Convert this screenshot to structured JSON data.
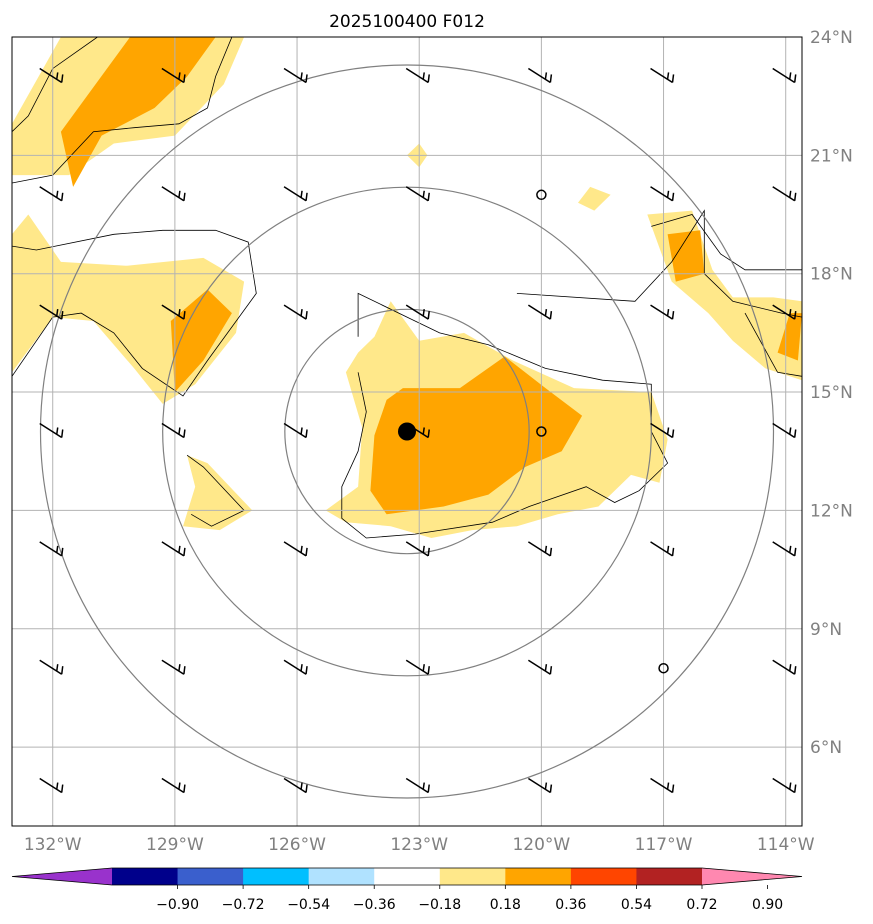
{
  "title": "2025100400 F012",
  "map": {
    "lon_min": -133,
    "lon_max": -113.6,
    "lat_min": 4,
    "lat_max": 24,
    "lon_ticks": [
      {
        "value": -132,
        "label": "132°W"
      },
      {
        "value": -129,
        "label": "129°W"
      },
      {
        "value": -126,
        "label": "126°W"
      },
      {
        "value": -123,
        "label": "123°W"
      },
      {
        "value": -120,
        "label": "120°W"
      },
      {
        "value": -117,
        "label": "117°W"
      },
      {
        "value": -114,
        "label": "114°W"
      }
    ],
    "lat_ticks": [
      {
        "value": 24,
        "label": "24°N"
      },
      {
        "value": 21,
        "label": "21°N"
      },
      {
        "value": 18,
        "label": "18°N"
      },
      {
        "value": 15,
        "label": "15°N"
      },
      {
        "value": 12,
        "label": "12°N"
      },
      {
        "value": 9,
        "label": "9°N"
      },
      {
        "value": 6,
        "label": "6°N"
      }
    ],
    "gridlines": true,
    "storm_center": {
      "lon": -123.3,
      "lat": 14.0
    },
    "range_rings_deg": [
      3,
      6,
      9
    ]
  },
  "colorbar": {
    "levels": [
      "−0.90",
      "−0.72",
      "−0.54",
      "−0.36",
      "−0.18",
      "0.18",
      "0.36",
      "0.54",
      "0.72",
      "0.90"
    ],
    "colors": [
      "#9932cc",
      "#00008b",
      "#3a5fcd",
      "#00bfff",
      "#b0e2ff",
      "#ffffff",
      "#ffe88a",
      "#ffa500",
      "#ff4500",
      "#b22222",
      "#ff88b0"
    ]
  },
  "chart_data": {
    "type": "heatmap",
    "title": "2025100400 F012",
    "fill_regions": [
      {
        "level": "0.18-0.36",
        "color": "#ffe88a",
        "points": [
          [
            -131.8,
            24
          ],
          [
            -127.3,
            24
          ],
          [
            -127.8,
            22.8
          ],
          [
            -129,
            21.5
          ],
          [
            -130.5,
            21.3
          ],
          [
            -131.6,
            20.5
          ],
          [
            -133,
            20.5
          ],
          [
            -133,
            21.8
          ]
        ]
      },
      {
        "level": "0.36-0.54",
        "color": "#ffa500",
        "points": [
          [
            -130.1,
            24
          ],
          [
            -128,
            24
          ],
          [
            -128.7,
            23
          ],
          [
            -129.5,
            22.2
          ],
          [
            -130.8,
            21.5
          ],
          [
            -131.5,
            20.2
          ],
          [
            -131.8,
            21.6
          ]
        ]
      },
      {
        "level": "0.18-0.36",
        "color": "#ffe88a",
        "points": [
          [
            -133,
            19
          ],
          [
            -132.6,
            19.5
          ],
          [
            -131.8,
            18.3
          ],
          [
            -130.2,
            18.2
          ],
          [
            -128.3,
            18.4
          ],
          [
            -127.3,
            17.8
          ],
          [
            -127.5,
            16.5
          ],
          [
            -128.5,
            15.2
          ],
          [
            -129.3,
            14.7
          ],
          [
            -130,
            15.6
          ],
          [
            -131,
            16.8
          ],
          [
            -132,
            16.9
          ],
          [
            -133,
            15.5
          ]
        ]
      },
      {
        "level": "0.36-0.54",
        "color": "#ffa500",
        "points": [
          [
            -129.1,
            16.8
          ],
          [
            -128.2,
            17.6
          ],
          [
            -127.6,
            17
          ],
          [
            -128.3,
            15.8
          ],
          [
            -129,
            15
          ]
        ]
      },
      {
        "level": "0.18-0.36",
        "color": "#ffe88a",
        "points": [
          [
            -124.1,
            16.4
          ],
          [
            -123.7,
            17.3
          ],
          [
            -123,
            16.3
          ],
          [
            -121.9,
            16.5
          ],
          [
            -120.7,
            15.8
          ],
          [
            -119.2,
            15.1
          ],
          [
            -117.3,
            15
          ],
          [
            -116.9,
            13.8
          ],
          [
            -117.1,
            12.7
          ],
          [
            -117.8,
            12.9
          ],
          [
            -118.6,
            12.1
          ],
          [
            -119.6,
            11.9
          ],
          [
            -120.6,
            11.6
          ],
          [
            -121.7,
            11.5
          ],
          [
            -122.7,
            11.3
          ],
          [
            -123.7,
            11.6
          ],
          [
            -124.8,
            11.7
          ],
          [
            -125.3,
            12
          ],
          [
            -124.5,
            12.6
          ],
          [
            -124.4,
            14.1
          ],
          [
            -124.8,
            15.5
          ],
          [
            -124.5,
            16
          ]
        ]
      },
      {
        "level": "0.36-0.54",
        "color": "#ffa500",
        "points": [
          [
            -123.4,
            15.1
          ],
          [
            -122,
            15.1
          ],
          [
            -120.9,
            15.9
          ],
          [
            -119.9,
            15.1
          ],
          [
            -119,
            14.4
          ],
          [
            -119.5,
            13.5
          ],
          [
            -120.4,
            13.1
          ],
          [
            -121.3,
            12.4
          ],
          [
            -122.4,
            12.1
          ],
          [
            -123.8,
            11.9
          ],
          [
            -124.2,
            12.5
          ],
          [
            -124.1,
            13.9
          ],
          [
            -123.8,
            14.8
          ]
        ]
      },
      {
        "level": "0.18-0.36",
        "color": "#ffe88a",
        "points": [
          [
            -128.7,
            13.4
          ],
          [
            -128.2,
            13.2
          ],
          [
            -127.1,
            12
          ],
          [
            -127.9,
            11.5
          ],
          [
            -128.8,
            11.6
          ],
          [
            -128.5,
            12.6
          ]
        ]
      },
      {
        "level": "0.18-0.36",
        "color": "#ffe88a",
        "points": [
          [
            -123.3,
            21
          ],
          [
            -123,
            20.7
          ],
          [
            -122.8,
            21
          ],
          [
            -123,
            21.3
          ]
        ]
      },
      {
        "level": "0.18-0.36",
        "color": "#ffe88a",
        "points": [
          [
            -118.8,
            20.2
          ],
          [
            -118.3,
            20
          ],
          [
            -118.7,
            19.6
          ],
          [
            -119.1,
            19.8
          ]
        ]
      },
      {
        "level": "0.18-0.36",
        "color": "#ffe88a",
        "points": [
          [
            -117.4,
            19.5
          ],
          [
            -116.3,
            19.6
          ],
          [
            -115.8,
            18.1
          ],
          [
            -115.3,
            17.4
          ],
          [
            -114.3,
            17.4
          ],
          [
            -113.6,
            17.3
          ],
          [
            -113.6,
            15.3
          ],
          [
            -114.5,
            15.6
          ],
          [
            -115.3,
            16.3
          ],
          [
            -115.9,
            17
          ],
          [
            -116.8,
            17.8
          ]
        ]
      },
      {
        "level": "0.36-0.54",
        "color": "#ffa500",
        "points": [
          [
            -116.9,
            19
          ],
          [
            -116.1,
            19.1
          ],
          [
            -116,
            18
          ],
          [
            -116.7,
            17.8
          ]
        ]
      },
      {
        "level": "0.36-0.54",
        "color": "#ffa500",
        "points": [
          [
            -113.9,
            17
          ],
          [
            -113.6,
            17
          ],
          [
            -113.7,
            15.8
          ],
          [
            -114.2,
            16
          ]
        ]
      }
    ],
    "contours": [
      [
        [
          -130.9,
          24
        ],
        [
          -132,
          23.2
        ],
        [
          -132.6,
          22
        ],
        [
          -133,
          21.6
        ]
      ],
      [
        [
          -127.6,
          24
        ],
        [
          -128,
          23
        ],
        [
          -128.2,
          22.2
        ],
        [
          -128.9,
          21.8
        ],
        [
          -130,
          21.7
        ],
        [
          -131,
          21.6
        ],
        [
          -132,
          20.5
        ],
        [
          -133,
          20.3
        ]
      ],
      [
        [
          -133,
          18.7
        ],
        [
          -132.4,
          18.6
        ],
        [
          -130.5,
          19
        ],
        [
          -129.3,
          19.1
        ],
        [
          -128,
          19.1
        ],
        [
          -127.2,
          18.8
        ],
        [
          -127,
          17.5
        ],
        [
          -128.2,
          15.8
        ],
        [
          -128.8,
          14.9
        ],
        [
          -129.8,
          15.6
        ],
        [
          -130.5,
          16.5
        ],
        [
          -131.3,
          17
        ],
        [
          -132,
          16.9
        ],
        [
          -133,
          15.4
        ]
      ],
      [
        [
          -124.5,
          16.4
        ],
        [
          -124.5,
          17.5
        ],
        [
          -123.3,
          16.9
        ],
        [
          -122.5,
          16.5
        ],
        [
          -121.3,
          16.2
        ],
        [
          -119.9,
          15.6
        ],
        [
          -118.5,
          15.3
        ],
        [
          -117.3,
          15.2
        ],
        [
          -117.3,
          14
        ],
        [
          -116.9,
          13.2
        ],
        [
          -117.6,
          12.5
        ],
        [
          -118.2,
          12.2
        ],
        [
          -118.9,
          12.6
        ],
        [
          -120.3,
          12.1
        ],
        [
          -121.2,
          11.7
        ],
        [
          -123.1,
          11.4
        ],
        [
          -124.3,
          11.3
        ],
        [
          -124.9,
          11.8
        ],
        [
          -124.9,
          12.6
        ],
        [
          -124.5,
          13.5
        ],
        [
          -124.3,
          14.5
        ],
        [
          -124.5,
          15.5
        ]
      ],
      [
        [
          -128.7,
          13.4
        ],
        [
          -128.3,
          13.1
        ],
        [
          -127.3,
          12
        ],
        [
          -128.1,
          11.6
        ],
        [
          -128.6,
          11.9
        ]
      ],
      [
        [
          -120.6,
          17.5
        ],
        [
          -117.7,
          17.3
        ],
        [
          -116.8,
          18.3
        ],
        [
          -116,
          19.6
        ],
        [
          -116,
          18
        ],
        [
          -115.3,
          17.3
        ],
        [
          -114.1,
          17
        ],
        [
          -113.6,
          16.9
        ]
      ],
      [
        [
          -117.3,
          19.2
        ],
        [
          -116.3,
          19.5
        ],
        [
          -115.6,
          18.5
        ],
        [
          -115,
          18.1
        ],
        [
          -113.6,
          18.1
        ]
      ],
      [
        [
          -115,
          17
        ],
        [
          -114.2,
          15.5
        ],
        [
          -113.6,
          15.4
        ]
      ]
    ],
    "wind_barbs": [
      {
        "lon": -132,
        "lat": 23
      },
      {
        "lon": -129,
        "lat": 23
      },
      {
        "lon": -126,
        "lat": 23
      },
      {
        "lon": -123,
        "lat": 23
      },
      {
        "lon": -120,
        "lat": 23
      },
      {
        "lon": -117,
        "lat": 23
      },
      {
        "lon": -114,
        "lat": 23
      },
      {
        "lon": -132,
        "lat": 20
      },
      {
        "lon": -129,
        "lat": 20
      },
      {
        "lon": -126,
        "lat": 20
      },
      {
        "lon": -123,
        "lat": 20
      },
      {
        "lon": -117,
        "lat": 20
      },
      {
        "lon": -114,
        "lat": 20
      },
      {
        "lon": -132,
        "lat": 17
      },
      {
        "lon": -129,
        "lat": 17
      },
      {
        "lon": -126,
        "lat": 17
      },
      {
        "lon": -123,
        "lat": 17
      },
      {
        "lon": -120,
        "lat": 17
      },
      {
        "lon": -117,
        "lat": 17
      },
      {
        "lon": -114,
        "lat": 17
      },
      {
        "lon": -132,
        "lat": 14
      },
      {
        "lon": -129,
        "lat": 14
      },
      {
        "lon": -126,
        "lat": 14
      },
      {
        "lon": -123,
        "lat": 14
      },
      {
        "lon": -117,
        "lat": 14
      },
      {
        "lon": -114,
        "lat": 14
      },
      {
        "lon": -132,
        "lat": 11
      },
      {
        "lon": -129,
        "lat": 11
      },
      {
        "lon": -126,
        "lat": 11
      },
      {
        "lon": -123,
        "lat": 11
      },
      {
        "lon": -120,
        "lat": 11
      },
      {
        "lon": -117,
        "lat": 11
      },
      {
        "lon": -114,
        "lat": 11
      },
      {
        "lon": -132,
        "lat": 8
      },
      {
        "lon": -129,
        "lat": 8
      },
      {
        "lon": -126,
        "lat": 8
      },
      {
        "lon": -123,
        "lat": 8
      },
      {
        "lon": -120,
        "lat": 8
      },
      {
        "lon": -114,
        "lat": 8
      },
      {
        "lon": -132,
        "lat": 5
      },
      {
        "lon": -129,
        "lat": 5
      },
      {
        "lon": -126,
        "lat": 5
      },
      {
        "lon": -123,
        "lat": 5
      },
      {
        "lon": -120,
        "lat": 5
      },
      {
        "lon": -117,
        "lat": 5
      },
      {
        "lon": -114,
        "lat": 5
      }
    ],
    "calm_points": [
      {
        "lon": -120,
        "lat": 20
      },
      {
        "lon": -120,
        "lat": 14
      },
      {
        "lon": -117,
        "lat": 8
      }
    ]
  }
}
